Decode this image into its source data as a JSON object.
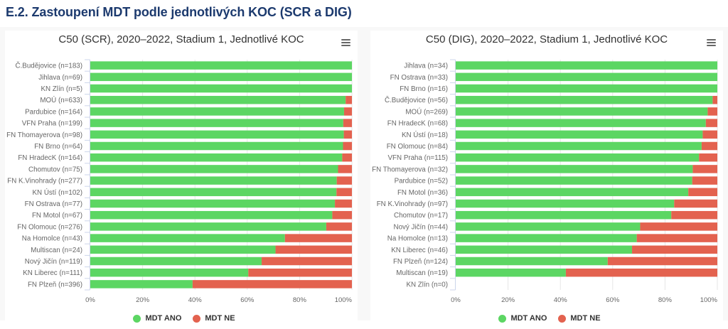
{
  "page": {
    "heading": "E.2. Zastoupení MDT podle jednotlivých KOC (SCR a DIG)",
    "menu_icon": "hamburger-menu-icon"
  },
  "colors": {
    "heading": "#1c3a6e",
    "mdt_ano": "#5cd663",
    "mdt_ne": "#e3624f"
  },
  "chart_data": [
    {
      "type": "bar",
      "orientation": "horizontal",
      "stacking": "percent",
      "title": "C50 (SCR), 2020–2022, Stadium 1, Jednotlivé KOC",
      "xlabel": "",
      "ylabel": "",
      "xlim": [
        0,
        100
      ],
      "xtick_values": [
        0,
        20,
        40,
        60,
        80,
        100
      ],
      "xticks": [
        "0%",
        "20%",
        "40%",
        "60%",
        "80%",
        "100%"
      ],
      "grid": true,
      "legend": "bottom-center",
      "categories": [
        "Č.Budějovice (n=183)",
        "Jihlava (n=69)",
        "KN Zlín (n=5)",
        "MOÚ (n=633)",
        "Pardubice (n=164)",
        "VFN Praha (n=199)",
        "FN Thomayerova (n=98)",
        "FN Brno (n=64)",
        "FN HradecK (n=164)",
        "Chomutov (n=75)",
        "FN K.Vinohrady (n=277)",
        "KN Ústí (n=102)",
        "FN Ostrava (n=77)",
        "FN Motol (n=67)",
        "FN Olomouc (n=276)",
        "Na Homolce (n=43)",
        "Multiscan (n=24)",
        "Nový Jičín (n=119)",
        "KN Liberec (n=111)",
        "FN Plzeň (n=396)"
      ],
      "series": [
        {
          "name": "MDT ANO",
          "color": "#5cd663",
          "values": [
            100,
            100,
            100,
            97.6,
            97.0,
            96.7,
            96.9,
            96.6,
            96.3,
            94.7,
            94.2,
            94.1,
            93.5,
            92.5,
            90.2,
            74.4,
            70.8,
            65.5,
            60.4,
            39.1
          ]
        },
        {
          "name": "MDT NE",
          "color": "#e3624f",
          "values": [
            0,
            0,
            0,
            2.4,
            3.0,
            3.3,
            3.1,
            3.4,
            3.7,
            5.3,
            5.8,
            5.9,
            6.5,
            7.5,
            9.8,
            25.6,
            29.2,
            34.5,
            39.6,
            60.9
          ]
        }
      ]
    },
    {
      "type": "bar",
      "orientation": "horizontal",
      "stacking": "percent",
      "title": "C50 (DIG), 2020–2022, Stadium 1, Jednotlivé KOC",
      "xlabel": "",
      "ylabel": "",
      "xlim": [
        0,
        100
      ],
      "xtick_values": [
        0,
        20,
        40,
        60,
        80,
        100
      ],
      "xticks": [
        "0%",
        "20%",
        "40%",
        "60%",
        "80%",
        "100%"
      ],
      "grid": true,
      "legend": "bottom-center",
      "categories": [
        "Jihlava (n=34)",
        "FN Ostrava (n=33)",
        "FN Brno (n=16)",
        "Č.Budějovice (n=56)",
        "MOÚ (n=269)",
        "FN HradecK (n=68)",
        "KN Ústí (n=18)",
        "FN Olomouc (n=84)",
        "VFN Praha (n=115)",
        "FN Thomayerova (n=32)",
        "Pardubice (n=52)",
        "FN Motol (n=36)",
        "FN K.Vinohrady (n=97)",
        "Chomutov (n=17)",
        "Nový Jičín (n=44)",
        "Na Homolce (n=13)",
        "KN Liberec (n=46)",
        "FN Plzeň (n=124)",
        "Multiscan (n=19)",
        "KN Zlín (n=0)"
      ],
      "series": [
        {
          "name": "MDT ANO",
          "color": "#5cd663",
          "values": [
            100,
            100,
            100,
            98.2,
            96.3,
            95.6,
            94.4,
            94.0,
            93.0,
            90.6,
            90.4,
            88.9,
            83.5,
            82.4,
            70.5,
            69.2,
            67.4,
            58.1,
            42.1,
            0
          ]
        },
        {
          "name": "MDT NE",
          "color": "#e3624f",
          "values": [
            0,
            0,
            0,
            1.8,
            3.7,
            4.4,
            5.6,
            6.0,
            7.0,
            9.4,
            9.6,
            11.1,
            16.5,
            17.6,
            29.5,
            30.8,
            32.6,
            41.9,
            57.9,
            0
          ]
        }
      ]
    }
  ]
}
